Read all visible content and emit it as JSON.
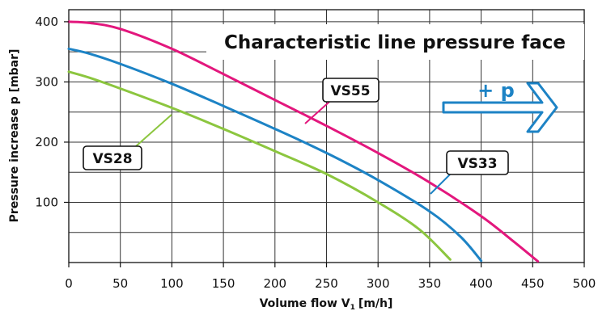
{
  "chart_data": {
    "type": "line",
    "title": "Characteristic line pressure face",
    "xlabel": "Volume  flow V",
    "xlabel_subscript": "1",
    "xlabel_unit": "[m/h]",
    "ylabel": "Pressure increase p [mbar]",
    "xlim": [
      0,
      500
    ],
    "ylim": [
      0,
      420
    ],
    "x_ticks": [
      0,
      50,
      100,
      150,
      200,
      250,
      300,
      350,
      400,
      450,
      500
    ],
    "y_ticks": [
      100,
      200,
      300,
      400
    ],
    "grid": true,
    "annotation": "+ p",
    "series": [
      {
        "name": "VS55",
        "color": "#e3177d",
        "x": [
          0,
          20,
          50,
          100,
          150,
          200,
          250,
          300,
          350,
          400,
          430,
          455
        ],
        "y": [
          400,
          398,
          388,
          355,
          313,
          270,
          227,
          182,
          133,
          77,
          37,
          2
        ]
      },
      {
        "name": "VS33",
        "color": "#1d83c5",
        "x": [
          0,
          20,
          50,
          100,
          150,
          200,
          250,
          300,
          350,
          380,
          400
        ],
        "y": [
          355,
          347,
          330,
          297,
          260,
          222,
          182,
          137,
          85,
          43,
          3
        ]
      },
      {
        "name": "VS28",
        "color": "#8cc63f",
        "x": [
          0,
          20,
          50,
          100,
          150,
          200,
          250,
          300,
          340,
          370
        ],
        "y": [
          317,
          307,
          289,
          257,
          222,
          185,
          147,
          100,
          55,
          5
        ]
      }
    ],
    "labels": [
      "VS55",
      "VS33",
      "VS28"
    ]
  }
}
